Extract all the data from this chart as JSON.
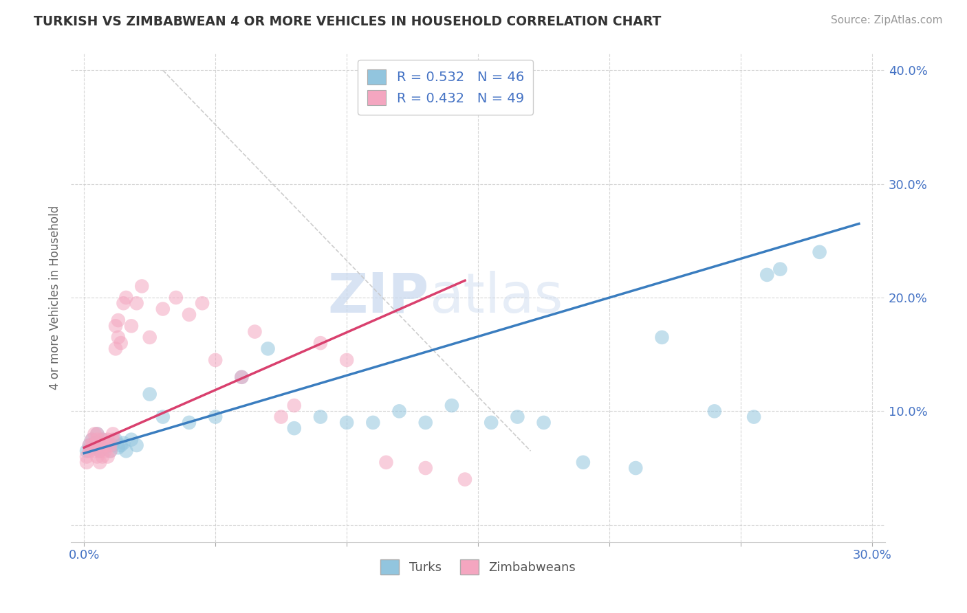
{
  "title": "TURKISH VS ZIMBABWEAN 4 OR MORE VEHICLES IN HOUSEHOLD CORRELATION CHART",
  "source": "Source: ZipAtlas.com",
  "ylabel": "4 or more Vehicles in Household",
  "xlim": [
    -0.005,
    0.305
  ],
  "ylim": [
    -0.015,
    0.415
  ],
  "xticks": [
    0.0,
    0.05,
    0.1,
    0.15,
    0.2,
    0.25,
    0.3
  ],
  "yticks": [
    0.0,
    0.1,
    0.2,
    0.3,
    0.4
  ],
  "turks_R": 0.532,
  "turks_N": 46,
  "zimbabweans_R": 0.432,
  "zimbabweans_N": 49,
  "turks_color": "#92c5de",
  "zimbabweans_color": "#f4a6c0",
  "turks_line_color": "#3a7dbf",
  "zimbabweans_line_color": "#d9406e",
  "background_color": "#ffffff",
  "turks_x": [
    0.001,
    0.002,
    0.003,
    0.003,
    0.004,
    0.005,
    0.005,
    0.006,
    0.006,
    0.007,
    0.007,
    0.008,
    0.009,
    0.01,
    0.011,
    0.012,
    0.013,
    0.014,
    0.015,
    0.016,
    0.018,
    0.02,
    0.025,
    0.03,
    0.04,
    0.05,
    0.06,
    0.07,
    0.08,
    0.09,
    0.1,
    0.11,
    0.12,
    0.13,
    0.14,
    0.155,
    0.165,
    0.175,
    0.19,
    0.21,
    0.22,
    0.24,
    0.255,
    0.26,
    0.265,
    0.28
  ],
  "turks_y": [
    0.065,
    0.07,
    0.075,
    0.068,
    0.072,
    0.068,
    0.08,
    0.072,
    0.065,
    0.075,
    0.07,
    0.068,
    0.072,
    0.065,
    0.07,
    0.075,
    0.068,
    0.07,
    0.072,
    0.065,
    0.075,
    0.07,
    0.115,
    0.095,
    0.09,
    0.095,
    0.13,
    0.155,
    0.085,
    0.095,
    0.09,
    0.09,
    0.1,
    0.09,
    0.105,
    0.09,
    0.095,
    0.09,
    0.055,
    0.05,
    0.165,
    0.1,
    0.095,
    0.22,
    0.225,
    0.24
  ],
  "zimbabweans_x": [
    0.001,
    0.001,
    0.002,
    0.002,
    0.003,
    0.003,
    0.004,
    0.004,
    0.005,
    0.005,
    0.005,
    0.006,
    0.006,
    0.007,
    0.007,
    0.007,
    0.008,
    0.008,
    0.009,
    0.009,
    0.01,
    0.01,
    0.011,
    0.011,
    0.012,
    0.012,
    0.013,
    0.013,
    0.014,
    0.015,
    0.016,
    0.018,
    0.02,
    0.022,
    0.025,
    0.03,
    0.035,
    0.04,
    0.045,
    0.05,
    0.06,
    0.065,
    0.075,
    0.08,
    0.09,
    0.1,
    0.115,
    0.13,
    0.145
  ],
  "zimbabweans_y": [
    0.06,
    0.055,
    0.07,
    0.065,
    0.075,
    0.07,
    0.08,
    0.065,
    0.06,
    0.08,
    0.075,
    0.055,
    0.065,
    0.075,
    0.07,
    0.06,
    0.065,
    0.07,
    0.06,
    0.075,
    0.07,
    0.065,
    0.08,
    0.075,
    0.155,
    0.175,
    0.165,
    0.18,
    0.16,
    0.195,
    0.2,
    0.175,
    0.195,
    0.21,
    0.165,
    0.19,
    0.2,
    0.185,
    0.195,
    0.145,
    0.13,
    0.17,
    0.095,
    0.105,
    0.16,
    0.145,
    0.055,
    0.05,
    0.04
  ],
  "turks_line_x0": 0.0,
  "turks_line_y0": 0.063,
  "turks_line_x1": 0.295,
  "turks_line_y1": 0.265,
  "zimb_line_x0": 0.0,
  "zimb_line_y0": 0.068,
  "zimb_line_x1": 0.145,
  "zimb_line_y1": 0.215
}
